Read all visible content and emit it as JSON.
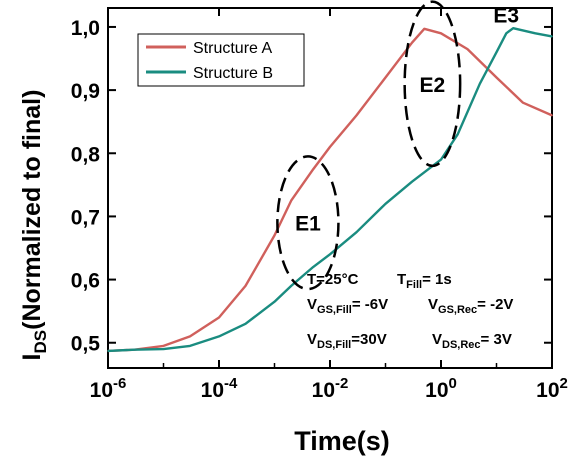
{
  "chart_data": {
    "type": "line",
    "xlabel": "Time(s)",
    "ylabel_main": "I",
    "ylabel_sub": "DS",
    "ylabel_rest": "(Normalized to final)",
    "x_scale": "log",
    "xlim": [
      1e-06,
      100
    ],
    "ylim": [
      0.46,
      1.03
    ],
    "grid": false,
    "legend_position": "top-left",
    "x_ticks": [
      {
        "value": 1e-06,
        "base": "10",
        "exp": "-6"
      },
      {
        "value": 0.0001,
        "base": "10",
        "exp": "-4"
      },
      {
        "value": 0.01,
        "base": "10",
        "exp": "-2"
      },
      {
        "value": 1,
        "base": "10",
        "exp": "0"
      },
      {
        "value": 100,
        "base": "10",
        "exp": "2"
      }
    ],
    "y_ticks": [
      {
        "value": 0.5,
        "label": "0,5"
      },
      {
        "value": 0.6,
        "label": "0,6"
      },
      {
        "value": 0.7,
        "label": "0,7"
      },
      {
        "value": 0.8,
        "label": "0,8"
      },
      {
        "value": 0.9,
        "label": "0,9"
      },
      {
        "value": 1.0,
        "label": "1,0"
      }
    ],
    "series": [
      {
        "name": "Structure A",
        "color": "#d0605c",
        "x": [
          1e-06,
          3e-06,
          1e-05,
          3e-05,
          0.0001,
          0.0003,
          0.001,
          0.002,
          0.005,
          0.01,
          0.03,
          0.1,
          0.3,
          0.5,
          1,
          3,
          10,
          30,
          100
        ],
        "y": [
          0.487,
          0.489,
          0.495,
          0.51,
          0.54,
          0.59,
          0.67,
          0.725,
          0.775,
          0.81,
          0.86,
          0.92,
          0.975,
          0.997,
          0.99,
          0.965,
          0.92,
          0.88,
          0.86
        ]
      },
      {
        "name": "Structure B",
        "color": "#1a8c80",
        "x": [
          1e-06,
          3e-06,
          1e-05,
          3e-05,
          0.0001,
          0.0003,
          0.001,
          0.002,
          0.005,
          0.01,
          0.03,
          0.1,
          0.3,
          1,
          2,
          5,
          10,
          15,
          20,
          50,
          100
        ],
        "y": [
          0.487,
          0.489,
          0.49,
          0.495,
          0.51,
          0.53,
          0.565,
          0.59,
          0.62,
          0.64,
          0.675,
          0.72,
          0.755,
          0.79,
          0.83,
          0.91,
          0.96,
          0.99,
          0.998,
          0.99,
          0.985
        ]
      }
    ],
    "annotations": [
      {
        "label": "E1",
        "x": 0.004,
        "y": 0.69,
        "ellipse_rx_decades": 0.55,
        "ellipse_ry": 0.105
      },
      {
        "label": "E2",
        "x": 0.7,
        "y": 0.91,
        "ellipse_rx_decades": 0.5,
        "ellipse_ry": 0.13
      },
      {
        "label": "E3",
        "x": 15,
        "y": 1.02
      }
    ],
    "conditions": {
      "temp": "T=25°C",
      "t_fill_main": "T",
      "t_fill_sub": "Fill",
      "t_fill_value": "= 1s",
      "vgs_fill_main": "V",
      "vgs_fill_sub": "GS,Fill",
      "vgs_fill_value": "= -6V",
      "vgs_rec_main": "V",
      "vgs_rec_sub": "GS,Rec",
      "vgs_rec_value": "= -2V",
      "vds_fill_main": "V",
      "vds_fill_sub": "DS,Fill",
      "vds_fill_value": "=30V",
      "vds_rec_main": "V",
      "vds_rec_sub": "DS,Rec",
      "vds_rec_value": "= 3V"
    }
  }
}
